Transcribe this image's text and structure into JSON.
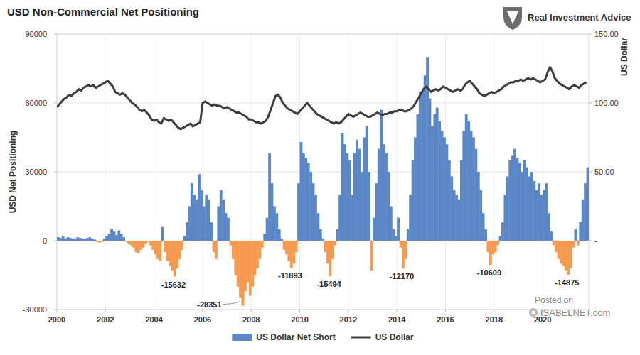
{
  "chart_data": {
    "type": "bar",
    "title": "USD Non-Commercial Net Positioning",
    "y_label": "USD Net Positioning",
    "y2_label": "US Dollar",
    "source": "Real Investment Advice",
    "watermark": [
      "Posted on",
      "ISABELNET.com"
    ],
    "grid": true,
    "legend": "bottom",
    "xlim": [
      2000,
      2021.9
    ],
    "xticks": [
      2000,
      2002,
      2004,
      2006,
      2008,
      2010,
      2012,
      2014,
      2016,
      2018,
      2020
    ],
    "ylim": [
      -30000,
      90000
    ],
    "yticks": [
      -30000,
      0,
      30000,
      60000,
      90000
    ],
    "y2lim": [
      -50,
      150
    ],
    "y2ticks": [
      {
        "value": 0,
        "label": "-"
      },
      {
        "value": 50,
        "label": "50.00"
      },
      {
        "value": 100,
        "label": "100.00"
      },
      {
        "value": 150,
        "label": "150.00"
      }
    ],
    "x": [
      2000,
      2000.1,
      2000.2,
      2000.3,
      2000.4,
      2000.5,
      2000.6,
      2000.7,
      2000.8,
      2000.9,
      2001,
      2001.1,
      2001.2,
      2001.3,
      2001.4,
      2001.5,
      2001.6,
      2001.7,
      2001.8,
      2001.9,
      2002,
      2002.1,
      2002.2,
      2002.3,
      2002.4,
      2002.5,
      2002.6,
      2002.7,
      2002.8,
      2002.9,
      2003,
      2003.1,
      2003.2,
      2003.3,
      2003.4,
      2003.5,
      2003.6,
      2003.7,
      2003.8,
      2003.9,
      2004,
      2004.1,
      2004.2,
      2004.3,
      2004.4,
      2004.5,
      2004.6,
      2004.7,
      2004.8,
      2004.9,
      2005,
      2005.1,
      2005.2,
      2005.3,
      2005.4,
      2005.5,
      2005.6,
      2005.7,
      2005.8,
      2005.9,
      2006,
      2006.1,
      2006.2,
      2006.3,
      2006.4,
      2006.5,
      2006.6,
      2006.7,
      2006.8,
      2006.9,
      2007,
      2007.1,
      2007.2,
      2007.3,
      2007.4,
      2007.5,
      2007.6,
      2007.7,
      2007.8,
      2007.9,
      2008,
      2008.1,
      2008.2,
      2008.3,
      2008.4,
      2008.5,
      2008.6,
      2008.7,
      2008.8,
      2008.9,
      2009,
      2009.1,
      2009.2,
      2009.3,
      2009.4,
      2009.5,
      2009.6,
      2009.7,
      2009.8,
      2009.9,
      2010,
      2010.1,
      2010.2,
      2010.3,
      2010.4,
      2010.5,
      2010.6,
      2010.7,
      2010.8,
      2010.9,
      2011,
      2011.1,
      2011.2,
      2011.3,
      2011.4,
      2011.5,
      2011.6,
      2011.7,
      2011.8,
      2011.9,
      2012,
      2012.1,
      2012.2,
      2012.3,
      2012.4,
      2012.5,
      2012.6,
      2012.7,
      2012.8,
      2012.9,
      2013,
      2013.1,
      2013.2,
      2013.3,
      2013.4,
      2013.5,
      2013.6,
      2013.7,
      2013.8,
      2013.9,
      2014,
      2014.1,
      2014.2,
      2014.3,
      2014.4,
      2014.5,
      2014.6,
      2014.7,
      2014.8,
      2014.9,
      2015,
      2015.1,
      2015.2,
      2015.3,
      2015.4,
      2015.5,
      2015.6,
      2015.7,
      2015.8,
      2015.9,
      2016,
      2016.1,
      2016.2,
      2016.3,
      2016.4,
      2016.5,
      2016.6,
      2016.7,
      2016.8,
      2016.9,
      2017,
      2017.1,
      2017.2,
      2017.3,
      2017.4,
      2017.5,
      2017.6,
      2017.7,
      2017.8,
      2017.9,
      2018,
      2018.1,
      2018.2,
      2018.3,
      2018.4,
      2018.5,
      2018.6,
      2018.7,
      2018.8,
      2018.9,
      2019,
      2019.1,
      2019.2,
      2019.3,
      2019.4,
      2019.5,
      2019.6,
      2019.7,
      2019.8,
      2019.9,
      2020,
      2020.1,
      2020.2,
      2020.3,
      2020.4,
      2020.5,
      2020.6,
      2020.7,
      2020.8,
      2020.9,
      2021,
      2021.1,
      2021.2,
      2021.3,
      2021.4,
      2021.5,
      2021.6,
      2021.7,
      2021.8
    ],
    "series": [
      {
        "name": "US Dollar Net Short",
        "type": "bar",
        "color": "#5b87c6",
        "colors": [
          "#5b87c6",
          "#5b87c6",
          "#5b87c6",
          "#5b87c6",
          "#5b87c6",
          "#5b87c6",
          "#5b87c6",
          "#5b87c6",
          "#5b87c6",
          "#5b87c6",
          "#5b87c6",
          "#5b87c6",
          "#5b87c6",
          "#5b87c6",
          "#5b87c6",
          "#5b87c6",
          "#f79a50",
          "#f79a50",
          "#f79a50",
          "#5b87c6",
          "#5b87c6",
          "#5b87c6",
          "#5b87c6",
          "#5b87c6",
          "#5b87c6",
          "#5b87c6",
          "#5b87c6",
          "#5b87c6",
          "#f79a50",
          "#f79a50",
          "#f79a50",
          "#f79a50",
          "#f79a50",
          "#f79a50",
          "#f79a50",
          "#f79a50",
          "#f79a50",
          "#f79a50",
          "#f79a50",
          "#f79a50",
          "#f79a50",
          "#f79a50",
          "#f79a50",
          "#5b87c6",
          "#f79a50",
          "#f79a50",
          "#f79a50",
          "#f79a50",
          "#f79a50",
          "#f79a50",
          "#f79a50",
          "#f79a50",
          "#5b87c6",
          "#5b87c6",
          "#5b87c6",
          "#5b87c6",
          "#5b87c6",
          "#5b87c6",
          "#5b87c6",
          "#5b87c6",
          "#5b87c6",
          "#5b87c6",
          "#5b87c6",
          "#5b87c6",
          "#f79a50",
          "#f79a50",
          "#5b87c6",
          "#5b87c6",
          "#5b87c6",
          "#5b87c6",
          "#5b87c6",
          "#f79a50",
          "#f79a50",
          "#f79a50",
          "#f79a50",
          "#f79a50",
          "#f79a50",
          "#f79a50",
          "#f79a50",
          "#f79a50",
          "#f79a50",
          "#f79a50",
          "#f79a50",
          "#f79a50",
          "#f79a50",
          "#5b87c6",
          "#5b87c6",
          "#5b87c6",
          "#5b87c6",
          "#5b87c6",
          "#5b87c6",
          "#5b87c6",
          "#5b87c6",
          "#f79a50",
          "#f79a50",
          "#f79a50",
          "#f79a50",
          "#f79a50",
          "#f79a50",
          "#5b87c6",
          "#5b87c6",
          "#5b87c6",
          "#5b87c6",
          "#5b87c6",
          "#5b87c6",
          "#5b87c6",
          "#5b87c6",
          "#5b87c6",
          "#5b87c6",
          "#5b87c6",
          "#f79a50",
          "#f79a50",
          "#f79a50",
          "#f79a50",
          "#f79a50",
          "#5b87c6",
          "#5b87c6",
          "#5b87c6",
          "#5b87c6",
          "#5b87c6",
          "#5b87c6",
          "#5b87c6",
          "#5b87c6",
          "#5b87c6",
          "#5b87c6",
          "#5b87c6",
          "#5b87c6",
          "#5b87c6",
          "#5b87c6",
          "#f79a50",
          "#5b87c6",
          "#5b87c6",
          "#5b87c6",
          "#5b87c6",
          "#5b87c6",
          "#5b87c6",
          "#5b87c6",
          "#5b87c6",
          "#5b87c6",
          "#5b87c6",
          "#5b87c6",
          "#f79a50",
          "#f79a50",
          "#f79a50",
          "#5b87c6",
          "#5b87c6",
          "#5b87c6",
          "#5b87c6",
          "#5b87c6",
          "#5b87c6",
          "#5b87c6",
          "#5b87c6",
          "#5b87c6",
          "#5b87c6",
          "#5b87c6",
          "#5b87c6",
          "#5b87c6",
          "#5b87c6",
          "#5b87c6",
          "#5b87c6",
          "#5b87c6",
          "#5b87c6",
          "#5b87c6",
          "#5b87c6",
          "#5b87c6",
          "#5b87c6",
          "#5b87c6",
          "#5b87c6",
          "#5b87c6",
          "#5b87c6",
          "#5b87c6",
          "#5b87c6",
          "#5b87c6",
          "#5b87c6",
          "#5b87c6",
          "#5b87c6",
          "#5b87c6",
          "#f79a50",
          "#f79a50",
          "#f79a50",
          "#f79a50",
          "#f79a50",
          "#5b87c6",
          "#5b87c6",
          "#5b87c6",
          "#5b87c6",
          "#5b87c6",
          "#5b87c6",
          "#5b87c6",
          "#5b87c6",
          "#5b87c6",
          "#5b87c6",
          "#5b87c6",
          "#5b87c6",
          "#5b87c6",
          "#5b87c6",
          "#5b87c6",
          "#5b87c6",
          "#5b87c6",
          "#5b87c6",
          "#5b87c6",
          "#5b87c6",
          "#5b87c6",
          "#5b87c6",
          "#f79a50",
          "#f79a50",
          "#f79a50",
          "#f79a50",
          "#f79a50",
          "#f79a50",
          "#f79a50",
          "#f79a50",
          "#f79a50",
          "#5b87c6",
          "#f79a50",
          "#5b87c6",
          "#5b87c6",
          "#5b87c6",
          "#5b87c6"
        ],
        "values": [
          1500,
          1200,
          1800,
          1000,
          1500,
          1200,
          800,
          1000,
          1500,
          1200,
          1000,
          800,
          1200,
          1500,
          1000,
          500,
          -500,
          -800,
          -500,
          1000,
          2000,
          3000,
          5000,
          4000,
          2500,
          4500,
          3000,
          1500,
          -500,
          -1500,
          -2000,
          -3000,
          -5000,
          -5500,
          -4000,
          -3000,
          -1500,
          -500,
          -2000,
          -4000,
          -6000,
          -8000,
          -9000,
          6000,
          -5000,
          -9000,
          -11000,
          -13000,
          -15632,
          -12000,
          -8000,
          -4000,
          2000,
          8000,
          15000,
          25000,
          20000,
          18000,
          29000,
          22000,
          15000,
          20000,
          18000,
          8000,
          -5000,
          -8000,
          15000,
          22000,
          18000,
          12000,
          10000,
          -2000,
          -8000,
          -15000,
          -20000,
          -25000,
          -28351,
          -22000,
          -18000,
          -24000,
          -20000,
          -15000,
          -12000,
          -8000,
          -3000,
          3000,
          10000,
          38000,
          25000,
          15000,
          12000,
          5000,
          1000,
          -4000,
          -6000,
          -9000,
          -11893,
          -10000,
          -5000,
          25000,
          43000,
          38000,
          36000,
          34000,
          30000,
          25000,
          20000,
          12000,
          5000,
          1000,
          -5000,
          -10000,
          -15494,
          -8000,
          -2000,
          5000,
          20000,
          47000,
          42000,
          38000,
          35000,
          20000,
          38000,
          44000,
          40000,
          30000,
          45000,
          50000,
          30000,
          -13000,
          10000,
          25000,
          40000,
          57000,
          42000,
          38000,
          30000,
          15000,
          5000,
          2000,
          10000,
          -3000,
          -12170,
          -8000,
          5000,
          20000,
          35000,
          45000,
          55000,
          65000,
          65000,
          72000,
          80000,
          62000,
          50000,
          55000,
          58000,
          52000,
          48000,
          45000,
          42000,
          35000,
          28000,
          22000,
          20000,
          18000,
          35000,
          48000,
          55000,
          52000,
          48000,
          45000,
          40000,
          30000,
          22000,
          12000,
          5000,
          -5000,
          -10609,
          -6000,
          -5000,
          -2000,
          2000,
          8000,
          20000,
          28000,
          35000,
          37000,
          40000,
          36000,
          34000,
          30000,
          35000,
          32000,
          28000,
          30000,
          26000,
          22000,
          25000,
          20000,
          22000,
          25000,
          12000,
          4000,
          -2000,
          -5000,
          -8000,
          -10000,
          -11000,
          -13000,
          -14875,
          -12000,
          -3000,
          5000,
          -2000,
          8000,
          18000,
          25000,
          32000
        ]
      },
      {
        "name": "US Dollar",
        "type": "line",
        "color": "#3c3c3c",
        "axis": "y2",
        "values": [
          97,
          99,
          101,
          103,
          104,
          106,
          105,
          107,
          108,
          110,
          109,
          111,
          112,
          113,
          112,
          113,
          111,
          112,
          113,
          114,
          115,
          116,
          114,
          112,
          108,
          107,
          106,
          107,
          106,
          104,
          102,
          100,
          99,
          97,
          95,
          94,
          95,
          93,
          91,
          88,
          87,
          88,
          86,
          85,
          89,
          88,
          87,
          88,
          86,
          84,
          82,
          81,
          82,
          83,
          84,
          85,
          83,
          84,
          85,
          86,
          100,
          101,
          100,
          99,
          98,
          99,
          98,
          98,
          97,
          96,
          97,
          96,
          95,
          94,
          93,
          93,
          92,
          91,
          90,
          88,
          88,
          87,
          86,
          86,
          85,
          86,
          87,
          90,
          95,
          100,
          105,
          106,
          104,
          100,
          98,
          96,
          95,
          94,
          93,
          92,
          94,
          96,
          98,
          100,
          98,
          96,
          94,
          92,
          91,
          90,
          89,
          88,
          87,
          86,
          85,
          86,
          85,
          86,
          88,
          90,
          92,
          91,
          90,
          91,
          92,
          93,
          92,
          91,
          90,
          90,
          91,
          92,
          93,
          92,
          91,
          92,
          92,
          93,
          93,
          94,
          94,
          95,
          95,
          94,
          94,
          95,
          96,
          98,
          101,
          104,
          107,
          110,
          112,
          110,
          108,
          109,
          110,
          109,
          110,
          112,
          111,
          110,
          109,
          108,
          109,
          110,
          109,
          110,
          113,
          115,
          116,
          114,
          112,
          110,
          107,
          106,
          105,
          106,
          107,
          108,
          107,
          108,
          109,
          110,
          112,
          113,
          114,
          115,
          115,
          116,
          116,
          117,
          116,
          117,
          118,
          117,
          118,
          117,
          116,
          115,
          116,
          117,
          122,
          126,
          123,
          118,
          116,
          114,
          113,
          112,
          111,
          110,
          112,
          113,
          112,
          111,
          113,
          114,
          115
        ]
      }
    ],
    "annotations": [
      {
        "text": "-15632",
        "x": 2004.8,
        "y": -15632
      },
      {
        "text": "-28351",
        "x": 2007.6,
        "y": -28351
      },
      {
        "text": "-11893",
        "x": 2009.6,
        "y": -11893
      },
      {
        "text": "-15494",
        "x": 2011.2,
        "y": -15494
      },
      {
        "text": "-12170",
        "x": 2014.2,
        "y": -12170
      },
      {
        "text": "-10609",
        "x": 2017.8,
        "y": -10609
      },
      {
        "text": "-14875",
        "x": 2021.0,
        "y": -14875
      }
    ]
  }
}
